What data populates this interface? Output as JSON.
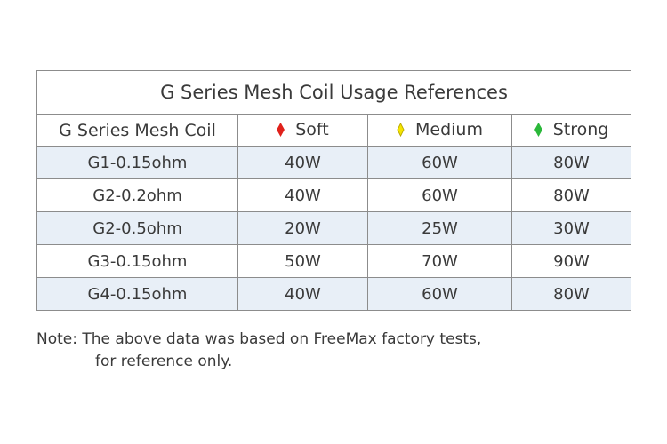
{
  "table": {
    "title": "G Series Mesh Coil Usage References",
    "headers": {
      "coil": "G Series Mesh Coil",
      "soft": "Soft",
      "medium": "Medium",
      "strong": "Strong"
    },
    "level_colors": {
      "soft": "#e0211b",
      "medium": "#f5e400",
      "strong": "#2bb83a"
    },
    "rows": [
      {
        "coil": "G1-0.15ohm",
        "soft": "40W",
        "medium": "60W",
        "strong": "80W"
      },
      {
        "coil": "G2-0.2ohm",
        "soft": "40W",
        "medium": "60W",
        "strong": "80W"
      },
      {
        "coil": "G2-0.5ohm",
        "soft": "20W",
        "medium": "25W",
        "strong": "30W"
      },
      {
        "coil": "G3-0.15ohm",
        "soft": "50W",
        "medium": "70W",
        "strong": "90W"
      },
      {
        "coil": "G4-0.15ohm",
        "soft": "40W",
        "medium": "60W",
        "strong": "80W"
      }
    ]
  },
  "note": {
    "line1": "Note: The above data was based on FreeMax factory tests,",
    "line2": "for reference only."
  }
}
